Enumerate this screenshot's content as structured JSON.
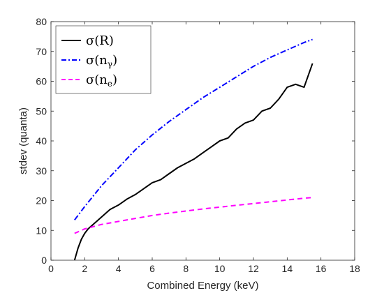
{
  "chart_data": {
    "type": "line",
    "xlabel": "Combined Energy (keV)",
    "ylabel": "stdev (quanta)",
    "xlim": [
      0,
      18
    ],
    "ylim": [
      0,
      80
    ],
    "xticks": [
      "0",
      "2",
      "4",
      "6",
      "8",
      "10",
      "12",
      "14",
      "16",
      "18"
    ],
    "yticks": [
      "0",
      "10",
      "20",
      "30",
      "40",
      "50",
      "60",
      "70",
      "80"
    ],
    "grid": false,
    "legend_position": "top-left",
    "series": [
      {
        "name": "σ(R)",
        "legend_main": "σ(R)",
        "legend_sub": "",
        "color": "#000000",
        "dash": "solid",
        "x": [
          1.4,
          1.6,
          1.8,
          2.0,
          2.2,
          2.5,
          2.8,
          3.1,
          3.5,
          4.0,
          4.5,
          5.0,
          5.5,
          6.0,
          6.5,
          7.0,
          7.5,
          8.0,
          8.5,
          9.0,
          9.5,
          10.0,
          10.5,
          11.0,
          11.5,
          12.0,
          12.5,
          13.0,
          13.5,
          14.0,
          14.5,
          15.0,
          15.5
        ],
        "y": [
          0,
          4,
          7,
          9,
          10.5,
          12,
          13.5,
          15,
          17,
          18.5,
          20.5,
          22,
          24,
          26,
          27,
          29,
          31,
          32.5,
          34,
          36,
          38,
          40,
          41,
          44,
          46,
          47,
          50,
          51,
          54,
          58,
          59,
          58,
          66
        ]
      },
      {
        "name": "σ(nγ)",
        "legend_main": "σ(n",
        "legend_sub": "γ",
        "color": "#0000ff",
        "dash": "dashdot",
        "x": [
          1.4,
          2.0,
          3.0,
          4.0,
          5.0,
          6.0,
          7.0,
          8.0,
          9.0,
          10.0,
          11.0,
          12.0,
          13.0,
          14.0,
          15.0,
          15.5
        ],
        "y": [
          13.5,
          18,
          25,
          31,
          37,
          42,
          46.5,
          50.5,
          54.5,
          58,
          61.5,
          65,
          68,
          70.5,
          73,
          74
        ]
      },
      {
        "name": "σ(ne)",
        "legend_main": "σ(n",
        "legend_sub": "e",
        "color": "#ff00ff",
        "dash": "dashed",
        "x": [
          1.4,
          2.0,
          3.0,
          4.0,
          5.0,
          6.0,
          7.0,
          8.0,
          9.0,
          10.0,
          11.0,
          12.0,
          13.0,
          14.0,
          15.0,
          15.5
        ],
        "y": [
          9,
          10.5,
          12,
          13,
          14,
          15,
          15.8,
          16.5,
          17.2,
          17.8,
          18.4,
          19,
          19.6,
          20.2,
          20.8,
          21
        ]
      }
    ]
  }
}
